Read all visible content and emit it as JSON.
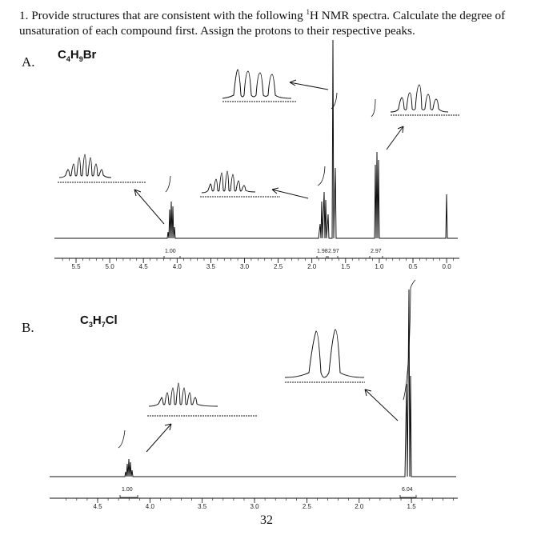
{
  "question": {
    "number": "1.",
    "text_before_sup": "Provide structures that are consistent with the following ",
    "sup": "1",
    "text_after_sup": "H NMR spectra.  Calculate the degree of unsaturation of each compound first.  Assign the protons to their respective peaks."
  },
  "spectrum_a": {
    "label": "A.",
    "formula": {
      "c": "C",
      "c_n": "4",
      "h": "H",
      "h_n": "9",
      "x": "Br"
    },
    "axis_ticks": [
      "5.5",
      "5.0",
      "4.5",
      "4.0",
      "3.5",
      "3.0",
      "2.5",
      "2.0",
      "1.5",
      "1.0",
      "0.5",
      "0.0"
    ],
    "integrals": [
      "1.00",
      "1.98",
      "2.97",
      "2.97"
    ]
  },
  "spectrum_b": {
    "label": "B.",
    "formula": {
      "c": "C",
      "c_n": "3",
      "h": "H",
      "h_n": "7",
      "x": "Cl"
    },
    "axis_ticks": [
      "4.5",
      "4.0",
      "3.5",
      "3.0",
      "2.5",
      "2.0",
      "1.5"
    ],
    "integrals": [
      "1.00",
      "6.04"
    ]
  },
  "page_number": "32"
}
